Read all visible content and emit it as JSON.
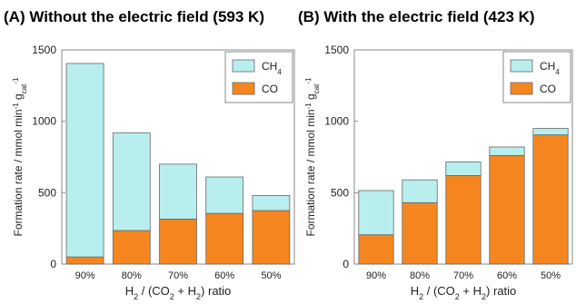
{
  "chart_data": [
    {
      "type": "bar",
      "stacked": true,
      "title": "(A) Without the electric field (593 K)",
      "xlabel": "H2 / (CO2 + H2) ratio",
      "ylabel": "Formation rate / mmol min-1 gcat-1",
      "ylim": [
        0,
        1500
      ],
      "yticks": [
        0,
        500,
        1000,
        1500
      ],
      "categories": [
        "90%",
        "80%",
        "70%",
        "60%",
        "50%"
      ],
      "series": [
        {
          "name": "CO",
          "values": [
            50,
            235,
            315,
            355,
            375
          ]
        },
        {
          "name": "CH4",
          "values": [
            1355,
            685,
            385,
            255,
            105
          ]
        }
      ],
      "legend_position": "top-right"
    },
    {
      "type": "bar",
      "stacked": true,
      "title": "(B) With the electric field (423 K)",
      "xlabel": "H2 / (CO2 + H2) ratio",
      "ylabel": "Formation rate / mmol min-1 gcat-1",
      "ylim": [
        0,
        1500
      ],
      "yticks": [
        0,
        500,
        1000,
        1500
      ],
      "categories": [
        "90%",
        "80%",
        "70%",
        "60%",
        "50%"
      ],
      "series": [
        {
          "name": "CO",
          "values": [
            205,
            430,
            620,
            760,
            905
          ]
        },
        {
          "name": "CH4",
          "values": [
            310,
            160,
            95,
            60,
            45
          ]
        }
      ],
      "legend_position": "top-right"
    }
  ],
  "colors": {
    "CO": "#f5861f",
    "CH4": "#b8eeee",
    "stroke": "#666666"
  }
}
